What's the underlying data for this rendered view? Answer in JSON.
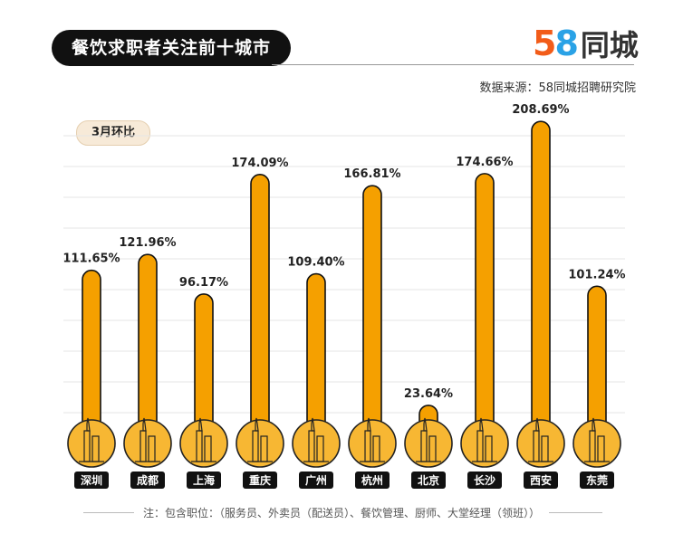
{
  "header": {
    "title": "餐饮求职者关注前十城市",
    "logo_5": "5",
    "logo_8": "8",
    "logo_text": "同城",
    "source": "数据来源：58同城招聘研究院"
  },
  "subtitle_pill": "3月环比",
  "footnote": "注：包含职位：（服务员、外卖员（配送员）、餐饮管理、厨师、大堂经理（领班））",
  "chart_data": {
    "type": "bar",
    "categories": [
      "深圳",
      "成都",
      "上海",
      "重庆",
      "广州",
      "杭州",
      "北京",
      "长沙",
      "西安",
      "东莞"
    ],
    "values": [
      111.65,
      121.96,
      96.17,
      174.09,
      109.4,
      166.81,
      23.64,
      174.66,
      208.69,
      101.24
    ],
    "data_labels": [
      "111.65%",
      "121.96%",
      "96.17%",
      "174.09%",
      "109.40%",
      "166.81%",
      "23.64%",
      "174.66%",
      "208.69%",
      "101.24%"
    ],
    "ylim": [
      0,
      220
    ],
    "grid": true,
    "colors": {
      "bar": "#f5a000",
      "bar_stroke": "#111111",
      "circle": "#f7b733",
      "label_bg": "#111111"
    }
  }
}
